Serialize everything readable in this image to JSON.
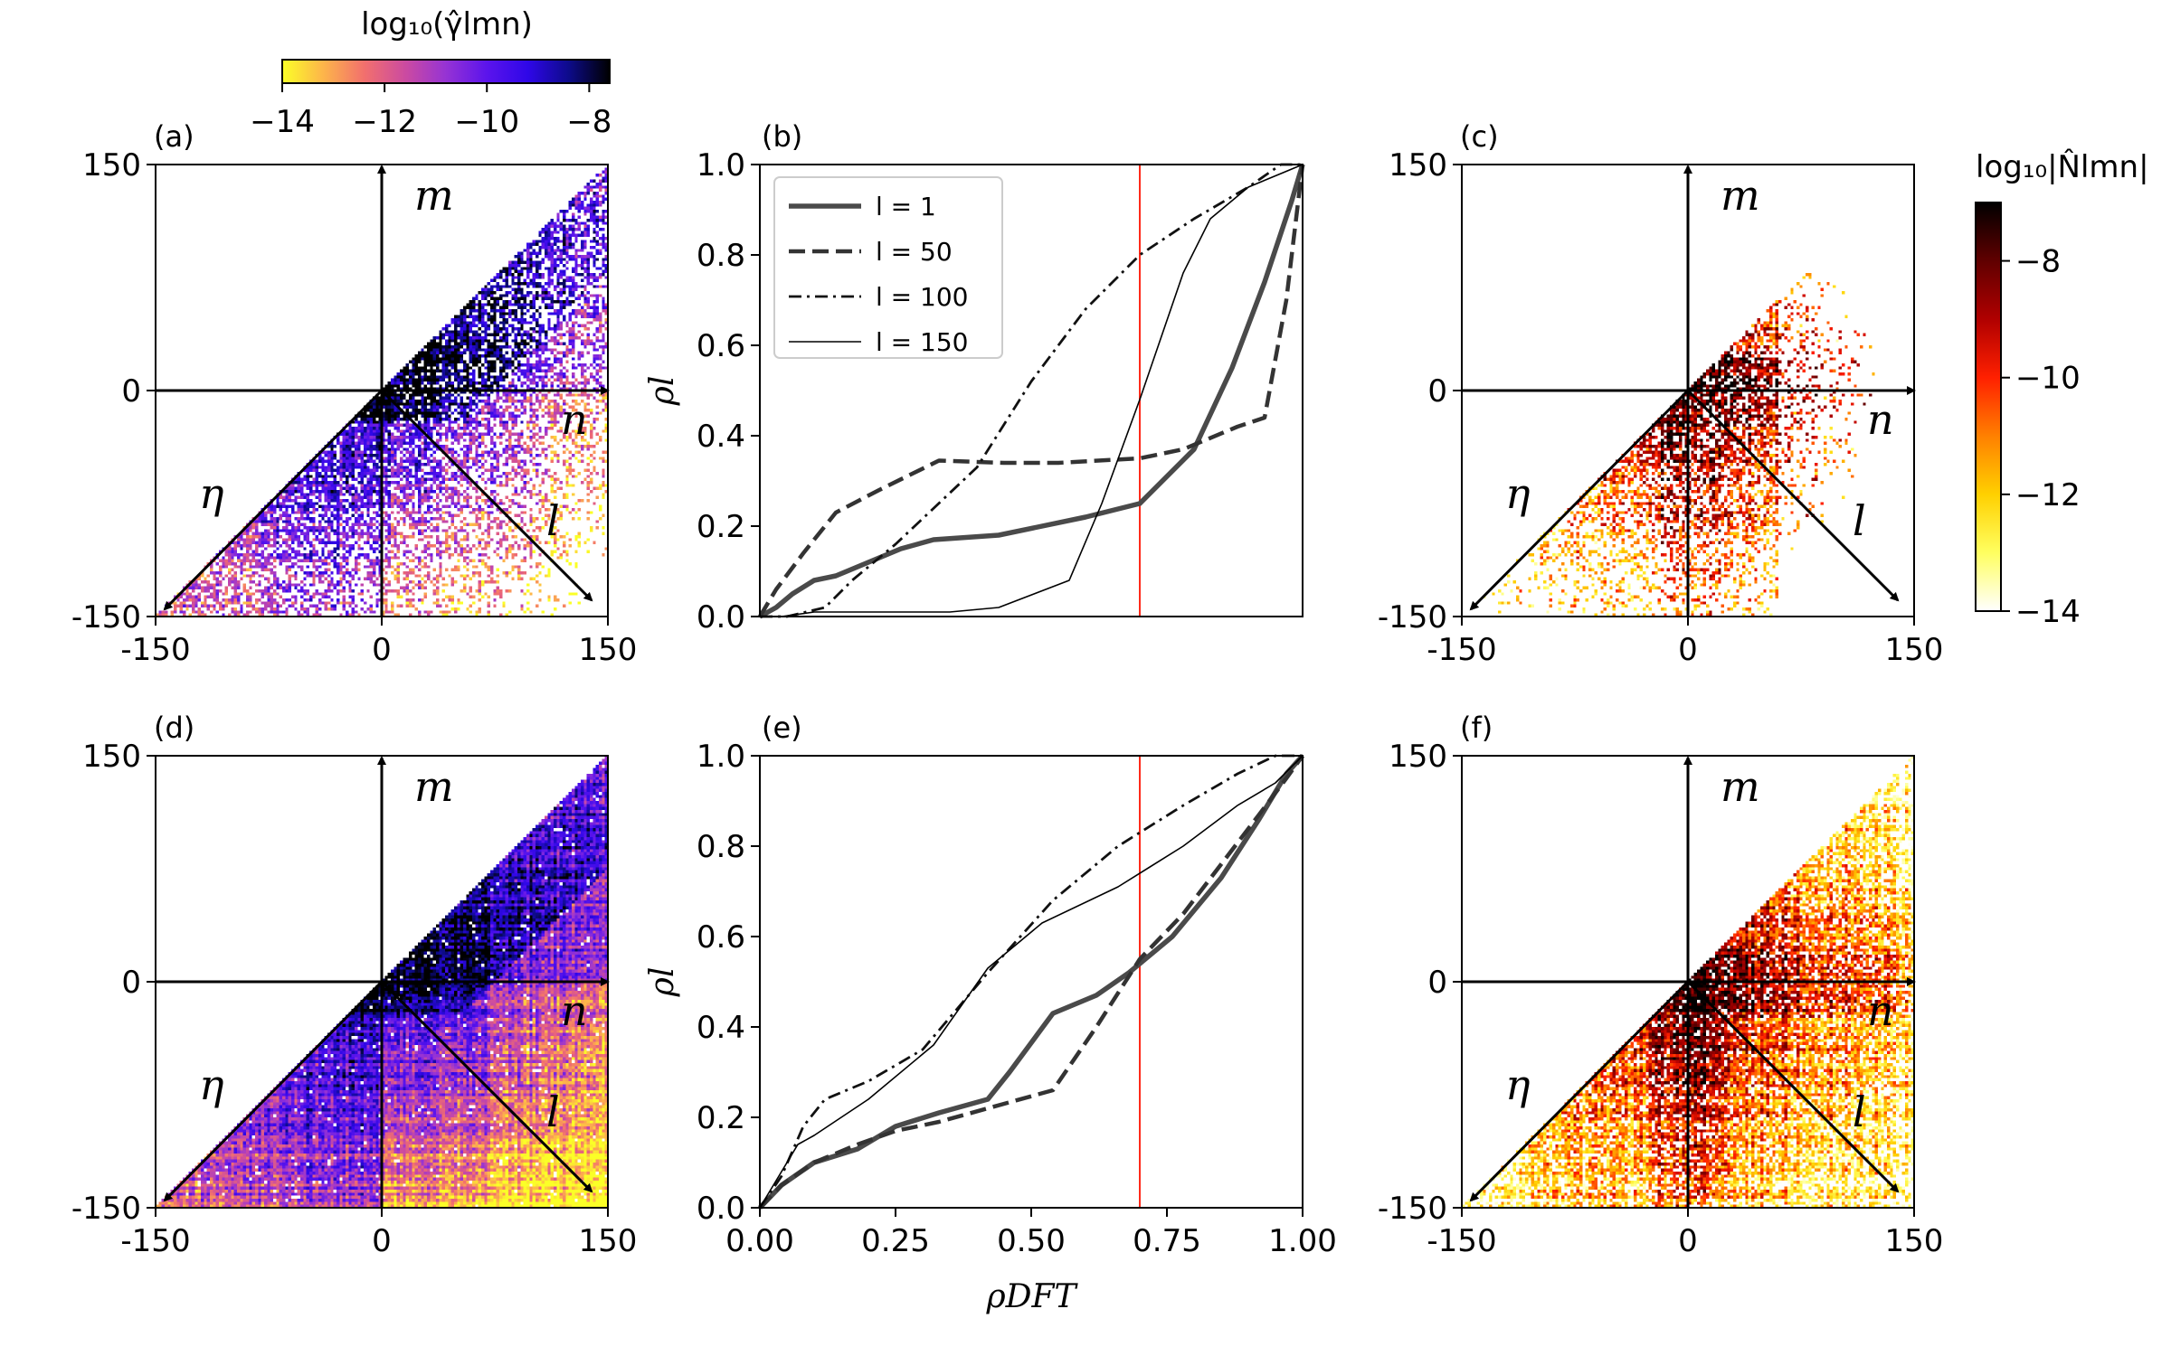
{
  "figure": {
    "colorbar_gamma": {
      "title": "log₁₀(γ̂lmn)",
      "ticks": [
        "−14",
        "−12",
        "−10",
        "−8"
      ],
      "tick_values": [
        -14,
        -12,
        -10,
        -8
      ],
      "range": [
        -14,
        -7.6
      ],
      "colormap": "plasma_r",
      "stops": [
        "#fbff27",
        "#fdb54a",
        "#f2706d",
        "#cc4ba0",
        "#9633d4",
        "#5b14ec",
        "#2f07e8",
        "#0d0b8a",
        "#000000"
      ]
    },
    "colorbar_N": {
      "title": "log₁₀|N̂lmn|",
      "ticks": [
        "−8",
        "−10",
        "−12",
        "−14"
      ],
      "tick_values": [
        -8,
        -10,
        -12,
        -14
      ],
      "range": [
        -14,
        -7
      ],
      "colormap": "hot_r",
      "stops": [
        "#ffffff",
        "#ffff60",
        "#ffd000",
        "#ff8000",
        "#ff2000",
        "#b00000",
        "#600000",
        "#000000"
      ]
    },
    "heatmap_panels": [
      {
        "label": "(a)",
        "colormap": "plasma",
        "pattern": "sparse",
        "axes": {
          "m": "m",
          "n": "n",
          "l": "l",
          "eta": "η"
        },
        "xticks": [
          "-150",
          "0",
          "150"
        ],
        "yticks": [
          "150",
          "0",
          "-150"
        ],
        "xlim": [
          -150,
          150
        ],
        "ylim": [
          -150,
          150
        ]
      },
      {
        "label": "(c)",
        "colormap": "hot",
        "pattern": "sparse",
        "axes": {
          "m": "m",
          "n": "n",
          "l": "l",
          "eta": "η"
        },
        "xticks": [
          "-150",
          "0",
          "150"
        ],
        "yticks": [
          "150",
          "0",
          "-150"
        ],
        "xlim": [
          -150,
          150
        ],
        "ylim": [
          -150,
          150
        ]
      },
      {
        "label": "(d)",
        "colormap": "plasma",
        "pattern": "dense",
        "axes": {
          "m": "m",
          "n": "n",
          "l": "l",
          "eta": "η"
        },
        "xticks": [
          "-150",
          "0",
          "150"
        ],
        "yticks": [
          "150",
          "0",
          "-150"
        ],
        "xlim": [
          -150,
          150
        ],
        "ylim": [
          -150,
          150
        ]
      },
      {
        "label": "(f)",
        "colormap": "hot",
        "pattern": "dense",
        "axes": {
          "m": "m",
          "n": "n",
          "l": "l",
          "eta": "η"
        },
        "xticks": [
          "-150",
          "0",
          "150"
        ],
        "yticks": [
          "150",
          "0",
          "-150"
        ],
        "xlim": [
          -150,
          150
        ],
        "ylim": [
          -150,
          150
        ]
      }
    ],
    "line_panels": [
      {
        "label": "(b)",
        "ylabel": "ρl",
        "xlabel": "",
        "show_xticks": false,
        "threshold": 0.7
      },
      {
        "label": "(e)",
        "ylabel": "ρl",
        "xlabel": "ρDFT",
        "show_xticks": true,
        "threshold": 0.7
      }
    ],
    "legend": [
      "l = 1",
      "l = 50",
      "l = 100",
      "l = 150"
    ]
  },
  "chart_data": [
    {
      "type": "heatmap",
      "title": "(a)",
      "xlabel": "",
      "ylabel": "",
      "xlim": [
        -150,
        150
      ],
      "ylim": [
        -150,
        150
      ],
      "note": "log10(gamma_lmn) over (n,m) plane, sparse coverage; values from -14 to -8"
    },
    {
      "type": "line",
      "title": "(b)",
      "xlabel": "",
      "ylabel": "ρl",
      "xlim": [
        0,
        1
      ],
      "ylim": [
        0,
        1
      ],
      "yticks": [
        "0.0",
        "0.2",
        "0.4",
        "0.6",
        "0.8",
        "1.0"
      ],
      "vline": 0.7,
      "series": [
        {
          "name": "l = 1",
          "style": "thick",
          "x": [
            0,
            0.03,
            0.06,
            0.1,
            0.14,
            0.2,
            0.26,
            0.32,
            0.44,
            0.6,
            0.7,
            0.8,
            0.87,
            0.93,
            0.98,
            1.0
          ],
          "y": [
            0,
            0.02,
            0.05,
            0.08,
            0.09,
            0.12,
            0.15,
            0.17,
            0.18,
            0.22,
            0.25,
            0.37,
            0.55,
            0.74,
            0.92,
            1.0
          ]
        },
        {
          "name": "l = 50",
          "style": "dashed",
          "x": [
            0,
            0.03,
            0.08,
            0.14,
            0.22,
            0.33,
            0.45,
            0.55,
            0.7,
            0.78,
            0.88,
            0.93,
            0.97,
            1.0
          ],
          "y": [
            0,
            0.06,
            0.14,
            0.23,
            0.28,
            0.345,
            0.34,
            0.34,
            0.35,
            0.37,
            0.42,
            0.44,
            0.7,
            1.0
          ]
        },
        {
          "name": "l = 100",
          "style": "dashdot",
          "x": [
            0,
            0.05,
            0.12,
            0.17,
            0.25,
            0.4,
            0.5,
            0.6,
            0.7,
            0.8,
            0.9,
            0.96,
            1.0
          ],
          "y": [
            0,
            0.0,
            0.02,
            0.08,
            0.16,
            0.33,
            0.52,
            0.68,
            0.8,
            0.88,
            0.95,
            1.0,
            1.0
          ]
        },
        {
          "name": "l = 150",
          "style": "thin",
          "x": [
            0,
            0.04,
            0.1,
            0.2,
            0.35,
            0.44,
            0.57,
            0.63,
            0.7,
            0.78,
            0.83,
            0.9,
            0.96,
            1.0
          ],
          "y": [
            0,
            0.0,
            0.01,
            0.01,
            0.01,
            0.02,
            0.08,
            0.25,
            0.48,
            0.76,
            0.88,
            0.95,
            0.98,
            1.0
          ]
        }
      ]
    },
    {
      "type": "heatmap",
      "title": "(c)",
      "xlim": [
        -150,
        150
      ],
      "ylim": [
        -150,
        150
      ],
      "note": "log10|N_lmn| over (n,m) plane, sparse coverage; values from -14 to -7"
    },
    {
      "type": "heatmap",
      "title": "(d)",
      "xlim": [
        -150,
        150
      ],
      "ylim": [
        -150,
        150
      ],
      "note": "log10(gamma_lmn) dense coverage"
    },
    {
      "type": "line",
      "title": "(e)",
      "xlabel": "ρDFT",
      "ylabel": "ρl",
      "xlim": [
        0,
        1
      ],
      "ylim": [
        0,
        1
      ],
      "xticks": [
        "0.00",
        "0.25",
        "0.50",
        "0.75",
        "1.00"
      ],
      "yticks": [
        "0.0",
        "0.2",
        "0.4",
        "0.6",
        "0.8",
        "1.0"
      ],
      "vline": 0.7,
      "series": [
        {
          "name": "l = 1",
          "style": "thick",
          "x": [
            0,
            0.04,
            0.1,
            0.18,
            0.25,
            0.33,
            0.42,
            0.46,
            0.54,
            0.62,
            0.68,
            0.76,
            0.85,
            0.92,
            0.97,
            1.0
          ],
          "y": [
            0,
            0.05,
            0.1,
            0.13,
            0.18,
            0.21,
            0.24,
            0.3,
            0.43,
            0.47,
            0.52,
            0.6,
            0.73,
            0.86,
            0.96,
            1.0
          ]
        },
        {
          "name": "l = 50",
          "style": "dashed",
          "x": [
            0,
            0.04,
            0.1,
            0.18,
            0.25,
            0.33,
            0.42,
            0.54,
            0.62,
            0.7,
            0.78,
            0.85,
            0.92,
            0.97,
            1.0
          ],
          "y": [
            0,
            0.05,
            0.1,
            0.14,
            0.17,
            0.19,
            0.22,
            0.26,
            0.4,
            0.55,
            0.65,
            0.76,
            0.87,
            0.95,
            1.0
          ]
        },
        {
          "name": "l = 100",
          "style": "dashdot",
          "x": [
            0,
            0.04,
            0.08,
            0.12,
            0.2,
            0.3,
            0.42,
            0.54,
            0.66,
            0.78,
            0.88,
            0.95,
            1.0
          ],
          "y": [
            0,
            0.07,
            0.18,
            0.24,
            0.28,
            0.35,
            0.52,
            0.68,
            0.8,
            0.89,
            0.96,
            1.0,
            1.0
          ]
        },
        {
          "name": "l = 150",
          "style": "thin",
          "x": [
            0,
            0.04,
            0.07,
            0.1,
            0.2,
            0.32,
            0.42,
            0.52,
            0.66,
            0.78,
            0.88,
            0.95,
            1.0
          ],
          "y": [
            0,
            0.08,
            0.14,
            0.16,
            0.24,
            0.36,
            0.53,
            0.63,
            0.71,
            0.8,
            0.89,
            0.94,
            1.0
          ]
        }
      ]
    },
    {
      "type": "heatmap",
      "title": "(f)",
      "xlim": [
        -150,
        150
      ],
      "ylim": [
        -150,
        150
      ],
      "note": "log10|N_lmn| dense coverage"
    }
  ]
}
